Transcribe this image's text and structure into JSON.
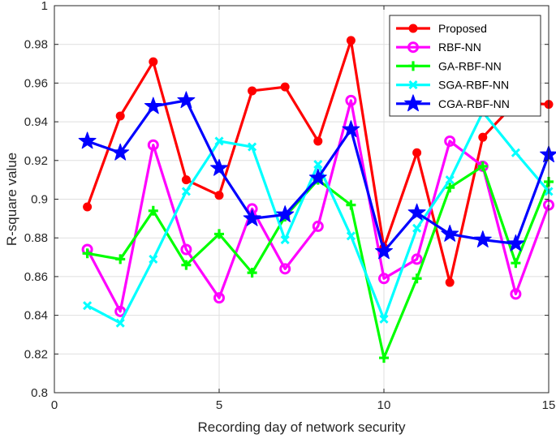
{
  "chart_data": {
    "type": "line",
    "title": "",
    "xlabel": "Recording day of network security",
    "ylabel": "R-square value",
    "xlim": [
      0,
      15
    ],
    "ylim": [
      0.8,
      1.0
    ],
    "grid": true,
    "legend_location": "top-right",
    "x_ticks": [
      "0",
      "5",
      "10",
      "15"
    ],
    "y_ticks": [
      "0.8",
      "0.82",
      "0.84",
      "0.86",
      "0.88",
      "0.9",
      "0.92",
      "0.94",
      "0.96",
      "0.98",
      "1"
    ],
    "x": [
      1,
      2,
      3,
      4,
      5,
      6,
      7,
      8,
      9,
      10,
      11,
      12,
      13,
      14,
      15
    ],
    "series": [
      {
        "name": "Proposed",
        "color": "#ff0000",
        "marker": "dot",
        "values": [
          0.896,
          0.943,
          0.971,
          0.91,
          0.902,
          0.956,
          0.958,
          0.93,
          0.982,
          0.875,
          0.924,
          0.857,
          0.932,
          0.95,
          0.949
        ]
      },
      {
        "name": "RBF-NN",
        "color": "#ff00ff",
        "marker": "circle",
        "values": [
          0.874,
          0.842,
          0.928,
          0.874,
          0.849,
          0.895,
          0.864,
          0.886,
          0.951,
          0.859,
          0.869,
          0.93,
          0.917,
          0.851,
          0.897
        ]
      },
      {
        "name": "GA-RBF-NN",
        "color": "#00ff00",
        "marker": "plus",
        "values": [
          0.872,
          0.869,
          0.894,
          0.866,
          0.882,
          0.862,
          0.891,
          0.91,
          0.897,
          0.818,
          0.859,
          0.906,
          0.917,
          0.867,
          0.909
        ]
      },
      {
        "name": "SGA-RBF-NN",
        "color": "#00ffff",
        "marker": "x",
        "values": [
          0.845,
          0.836,
          0.869,
          0.904,
          0.93,
          0.927,
          0.879,
          0.918,
          0.881,
          0.838,
          0.885,
          0.91,
          0.945,
          0.924,
          0.904
        ]
      },
      {
        "name": "CGA-RBF-NN",
        "color": "#0000ff",
        "marker": "star",
        "values": [
          0.93,
          0.924,
          0.948,
          0.951,
          0.916,
          0.89,
          0.892,
          0.911,
          0.936,
          0.873,
          0.893,
          0.882,
          0.879,
          0.877,
          0.923
        ]
      }
    ]
  }
}
